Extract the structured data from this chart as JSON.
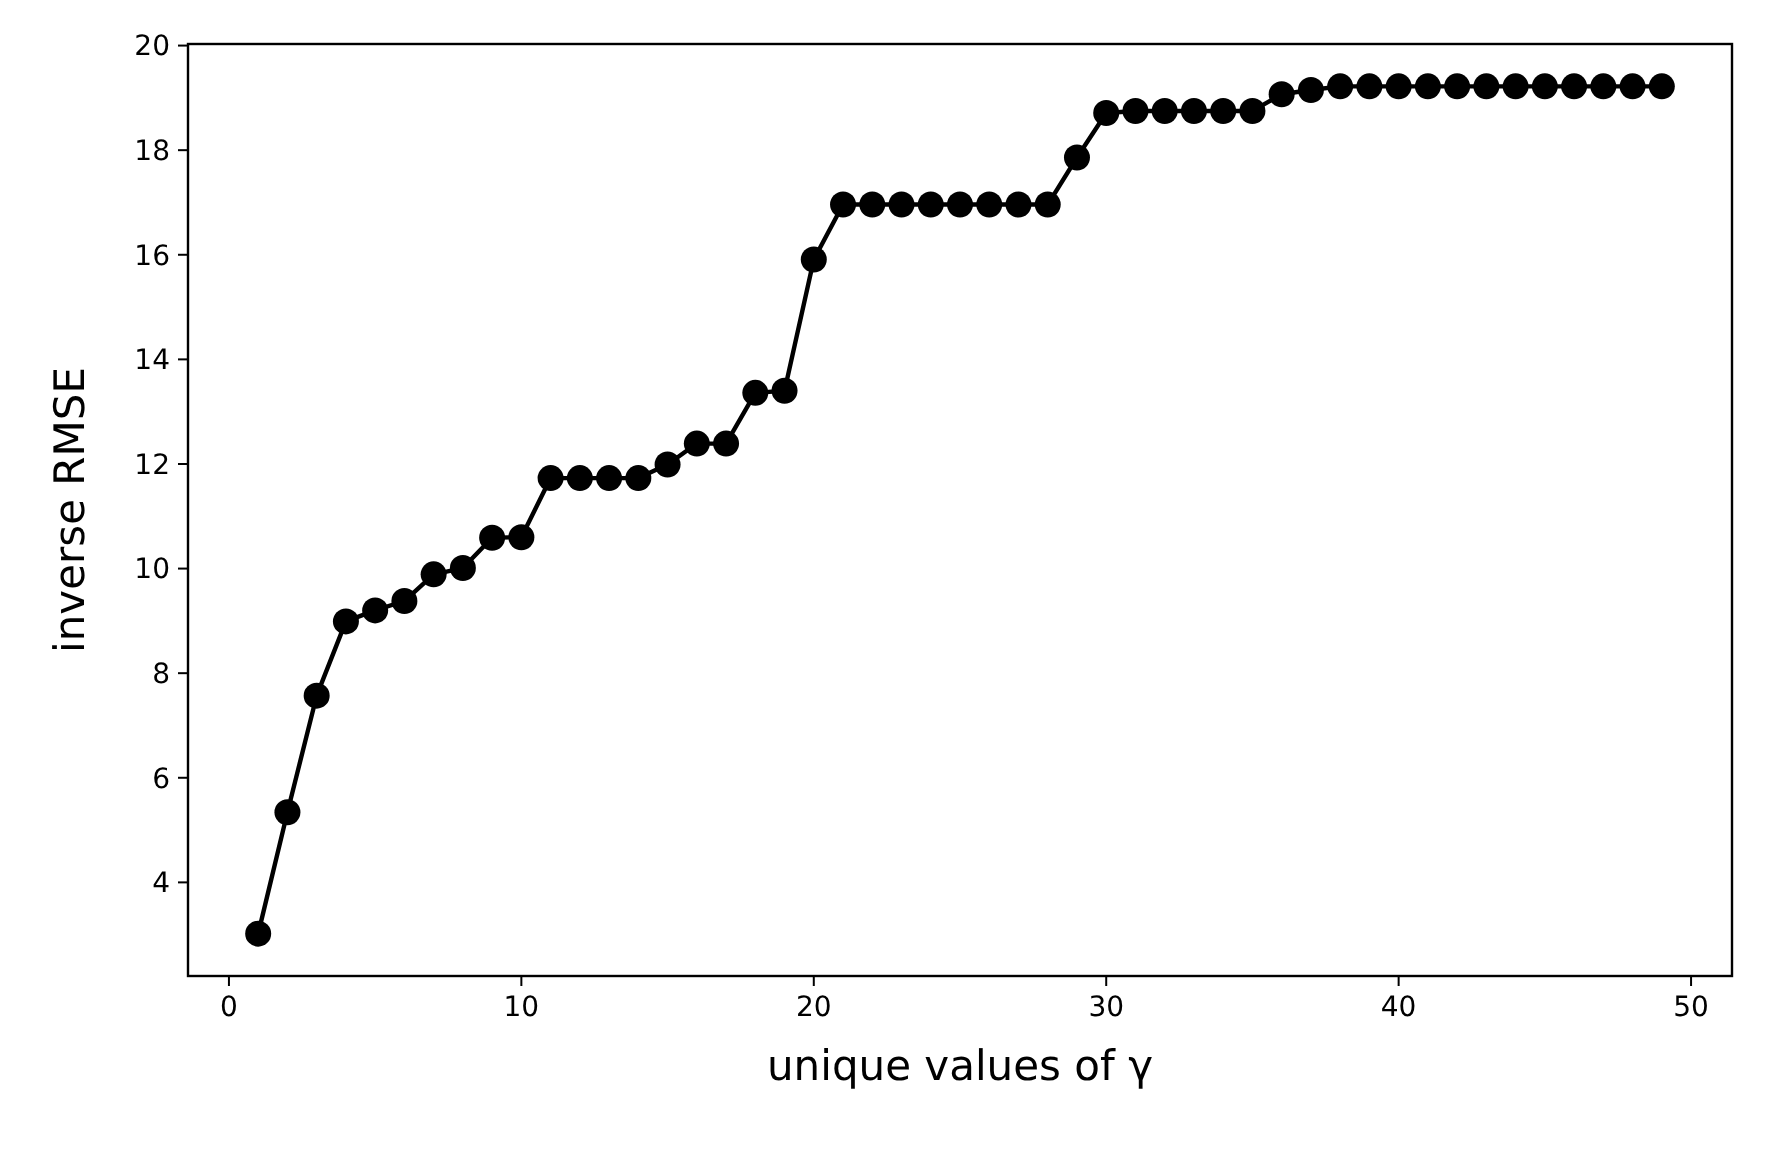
{
  "chart_data": {
    "type": "line",
    "xlabel": "unique values of γ",
    "ylabel": "inverse RMSE",
    "x": [
      1,
      2,
      3,
      4,
      5,
      6,
      7,
      8,
      9,
      10,
      11,
      12,
      13,
      14,
      15,
      16,
      17,
      18,
      19,
      20,
      21,
      22,
      23,
      24,
      25,
      26,
      27,
      28,
      29,
      30,
      31,
      32,
      33,
      34,
      35,
      36,
      37,
      38,
      39,
      40,
      41,
      42,
      43,
      44,
      45,
      46,
      47,
      48,
      49
    ],
    "series": [
      {
        "color": "#000000",
        "values": [
          3.02,
          5.34,
          7.57,
          8.99,
          9.2,
          9.38,
          9.89,
          10.01,
          10.59,
          10.6,
          11.73,
          11.73,
          11.73,
          11.73,
          11.99,
          12.39,
          12.39,
          13.36,
          13.4,
          15.91,
          16.96,
          16.96,
          16.96,
          16.96,
          16.96,
          16.96,
          16.96,
          16.96,
          17.86,
          18.71,
          18.75,
          18.75,
          18.75,
          18.75,
          18.75,
          19.07,
          19.15,
          19.22,
          19.22,
          19.22,
          19.22,
          19.22,
          19.22,
          19.22,
          19.22,
          19.22,
          19.22,
          19.22,
          19.22
        ]
      }
    ],
    "xlim": [
      -1.4,
      51.4
    ],
    "xticks": [
      0,
      10,
      20,
      30,
      40,
      50
    ],
    "ylim": [
      2.21,
      20.03
    ],
    "yticks": [
      4,
      6,
      8,
      10,
      12,
      14,
      16,
      18,
      20
    ],
    "marker": "circle",
    "line_style": "solid"
  }
}
